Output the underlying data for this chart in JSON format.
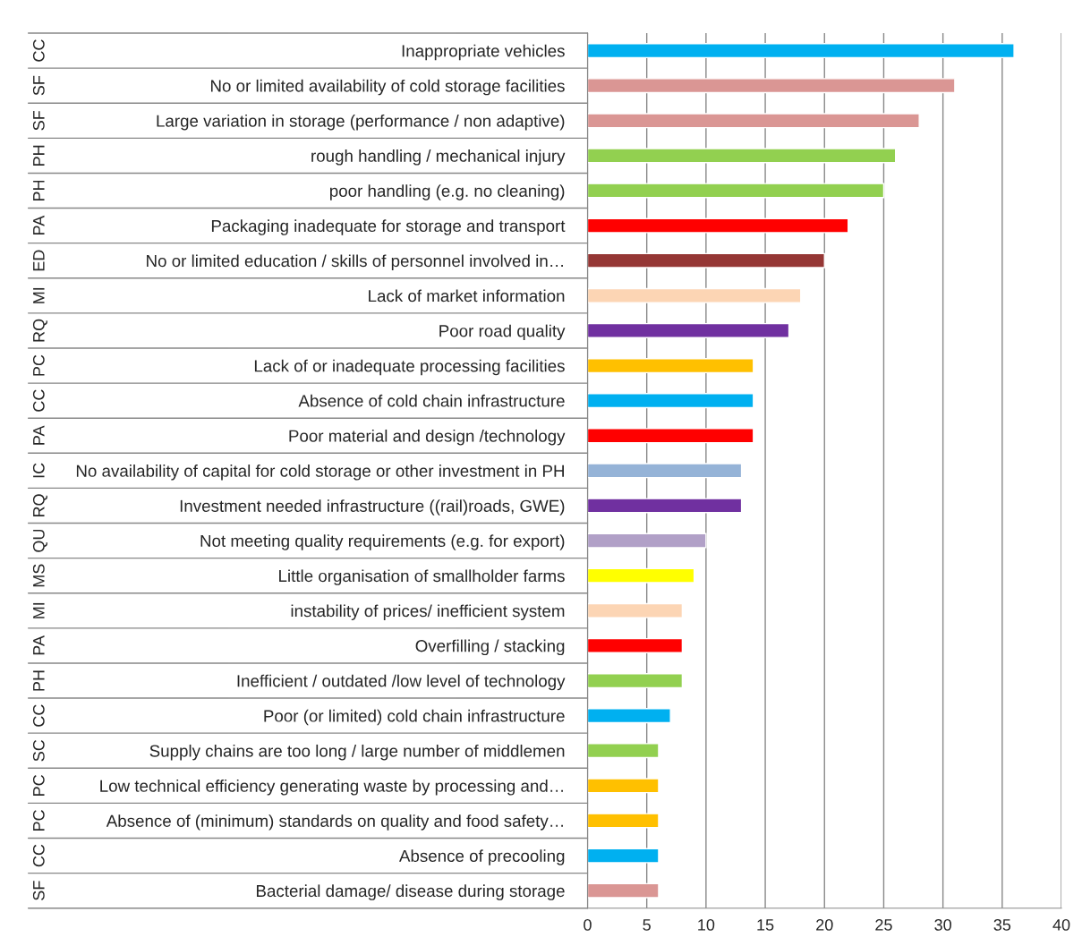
{
  "chart_data": {
    "type": "bar",
    "orientation": "horizontal",
    "categories": [
      "Inappropriate vehicles",
      "No or limited availability of cold storage facilities",
      "Large variation in storage (performance / non adaptive)",
      "rough handling / mechanical injury",
      "poor handling (e.g. no cleaning)",
      "Packaging inadequate for storage and transport",
      "No or limited education / skills of personnel involved in…",
      "Lack of market information",
      "Poor road quality",
      "Lack of or inadequate processing facilities",
      "Absence of cold chain infrastructure",
      "Poor material and design /technology",
      "No availability of capital for cold storage or other investment in PH",
      "Investment needed infrastructure ((rail)roads, GWE)",
      "Not meeting quality requirements (e.g. for export)",
      "Little organisation of smallholder farms",
      "instability of prices/ inefficient system",
      "Overfilling / stacking",
      "Inefficient / outdated /low level of technology",
      "Poor (or limited) cold chain infrastructure",
      "Supply chains are too long / large number of middlemen",
      "Low technical efficiency generating waste by processing and…",
      "Absence of (minimum) standards on quality and food safety…",
      "Absence of precooling",
      "Bacterial damage/ disease during storage"
    ],
    "values": [
      36,
      31,
      28,
      26,
      25,
      22,
      20,
      18,
      17,
      14,
      14,
      14,
      13,
      13,
      10,
      9,
      8,
      8,
      8,
      7,
      6,
      6,
      6,
      6,
      6
    ],
    "colors": [
      "#00b0f0",
      "#da9694",
      "#da9694",
      "#92d050",
      "#92d050",
      "#ff0000",
      "#953735",
      "#fcd5b4",
      "#7030a0",
      "#ffc000",
      "#00b0f0",
      "#ff0000",
      "#95b3d7",
      "#7030a0",
      "#b1a0c7",
      "#ffff00",
      "#fcd5b4",
      "#ff0000",
      "#92d050",
      "#00b0f0",
      "#92d050",
      "#ffc000",
      "#ffc000",
      "#00b0f0",
      "#da9694"
    ],
    "annotations": [
      "CC",
      "SF",
      "SF",
      "PH",
      "PH",
      "PA",
      "ED",
      "MI",
      "RQ",
      "PC",
      "CC",
      "PA",
      "IC",
      "RQ",
      "QU",
      "MS",
      "MI",
      "PA",
      "PH",
      "CC",
      "SC",
      "PC",
      "PC",
      "CC",
      "SF"
    ],
    "xlim": [
      0,
      40
    ],
    "xticks": [
      0,
      5,
      10,
      15,
      20,
      25,
      30,
      35,
      40
    ],
    "grid": "x",
    "legend": false
  }
}
